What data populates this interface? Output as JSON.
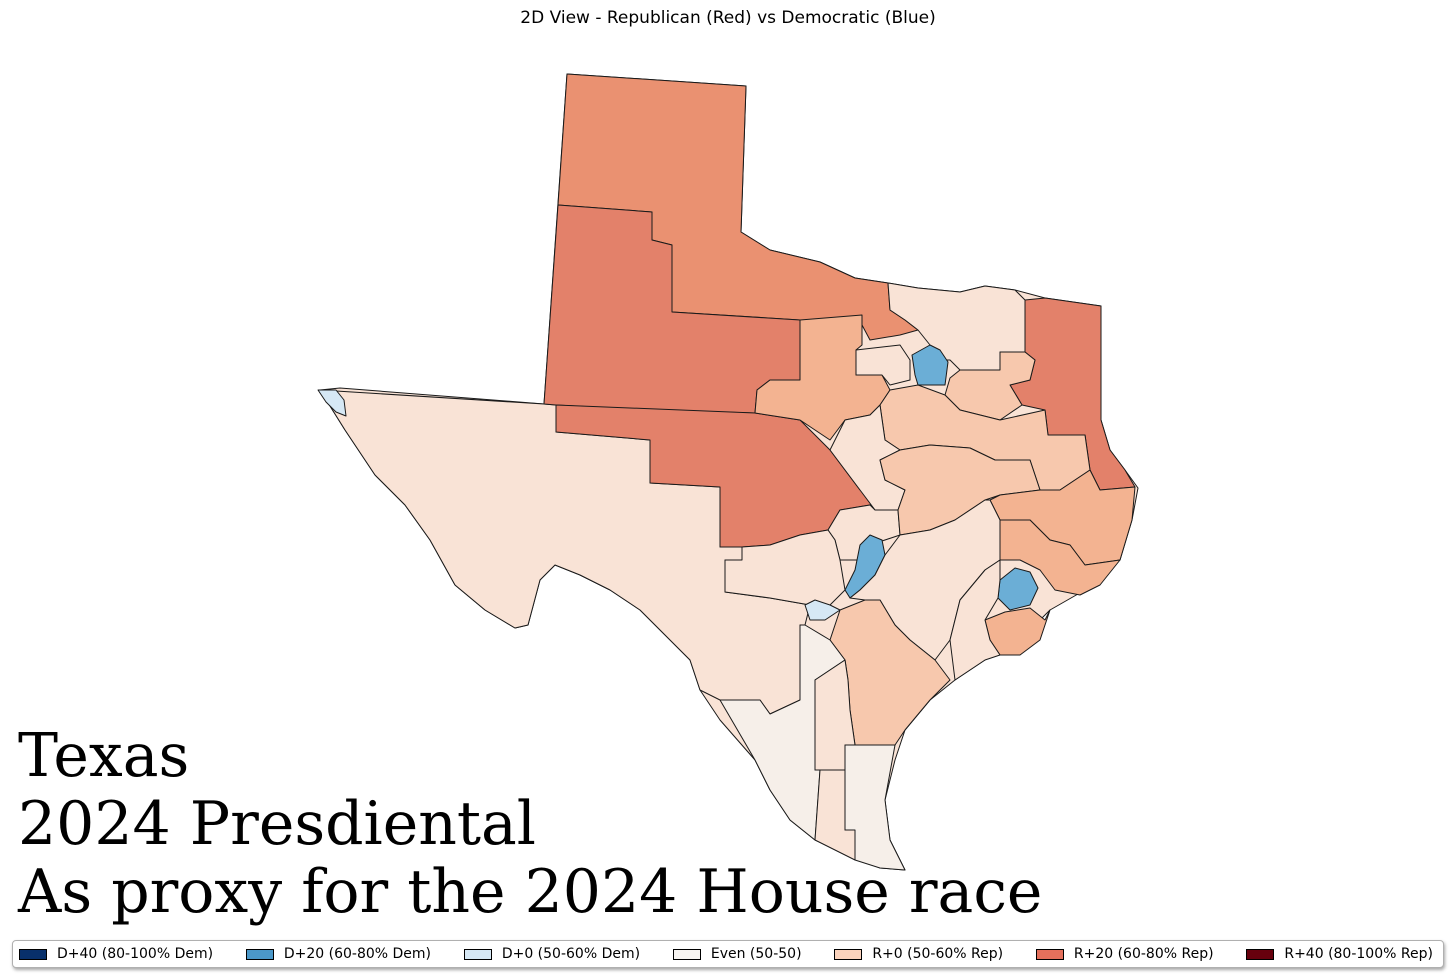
{
  "title": "2D View - Republican (Red) vs Democratic (Blue)",
  "caption": {
    "line1": "Texas",
    "line2": "2024 Presdiental",
    "line3": "As proxy for the 2024 House race"
  },
  "colors": {
    "d40": "#08306b",
    "d20": "#6baed6",
    "d0": "#d6e8f5",
    "even": "#f6efe9",
    "r0_light": "#f9e3d6",
    "r0": "#f7c8ad",
    "r0_dark": "#f3b391",
    "r20_light": "#ea9171",
    "r20": "#e3816a",
    "r40": "#67000d"
  },
  "legend": [
    {
      "label": "D+40 (80-100% Dem)",
      "color": "#08306b"
    },
    {
      "label": "D+20 (60-80% Dem)",
      "color": "#4b98c9"
    },
    {
      "label": "D+0 (50-60% Dem)",
      "color": "#d6e8f5"
    },
    {
      "label": "Even (50-50)",
      "color": "#f7f4f1"
    },
    {
      "label": "R+0 (50-60% Rep)",
      "color": "#fbd3bd"
    },
    {
      "label": "R+20 (60-80% Rep)",
      "color": "#e4705c"
    },
    {
      "label": "R+40 (80-100% Rep)",
      "color": "#67000d"
    }
  ]
}
